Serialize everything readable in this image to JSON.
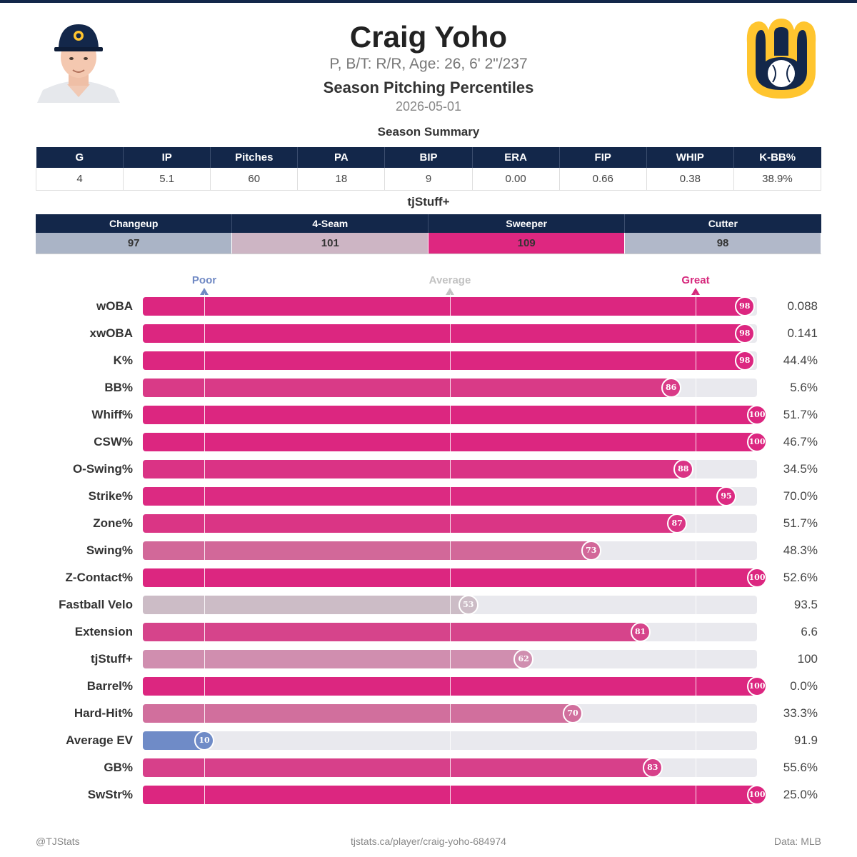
{
  "header": {
    "name": "Craig Yoho",
    "bio": "P, B/T: R/R, Age: 26, 6' 2\"/237",
    "title": "Season Pitching Percentiles",
    "date": "2026-05-01",
    "team_logo_icon": "brewers-ball-in-glove-logo",
    "headshot_icon": "player-headshot"
  },
  "summary": {
    "label": "Season Summary",
    "columns": [
      "G",
      "IP",
      "Pitches",
      "PA",
      "BIP",
      "ERA",
      "FIP",
      "WHIP",
      "K-BB%"
    ],
    "values": [
      "4",
      "5.1",
      "60",
      "18",
      "9",
      "0.00",
      "0.66",
      "0.38",
      "38.9%"
    ]
  },
  "stuff": {
    "label": "tjStuff+",
    "pitches": [
      {
        "name": "Changeup",
        "value": "97",
        "color": "#aab4c6"
      },
      {
        "name": "4-Seam",
        "value": "101",
        "color": "#cdb5c4"
      },
      {
        "name": "Sweeper",
        "value": "109",
        "color": "#de2780"
      },
      {
        "name": "Cutter",
        "value": "98",
        "color": "#b1b8c9"
      }
    ]
  },
  "chart_data": {
    "type": "bar",
    "orientation": "horizontal",
    "xlim": [
      0,
      100
    ],
    "scale_labels": [
      {
        "label": "Poor",
        "at": 10,
        "color": "#7089c4"
      },
      {
        "label": "Average",
        "at": 50,
        "color": "#c2c2c2"
      },
      {
        "label": "Great",
        "at": 90,
        "color": "#d6287c"
      }
    ],
    "categories": [
      "wOBA",
      "xwOBA",
      "K%",
      "BB%",
      "Whiff%",
      "CSW%",
      "O-Swing%",
      "Strike%",
      "Zone%",
      "Swing%",
      "Z-Contact%",
      "Fastball Velo",
      "Extension",
      "tjStuff+",
      "Barrel%",
      "Hard-Hit%",
      "Average EV",
      "GB%",
      "SwStr%"
    ],
    "percentiles": [
      98,
      98,
      98,
      86,
      100,
      100,
      88,
      95,
      87,
      73,
      100,
      53,
      81,
      62,
      100,
      70,
      10,
      83,
      100
    ],
    "stat_values": [
      "0.088",
      "0.141",
      "44.4%",
      "5.6%",
      "51.7%",
      "46.7%",
      "34.5%",
      "70.0%",
      "51.7%",
      "48.3%",
      "52.6%",
      "93.5",
      "6.6",
      "100",
      "0.0%",
      "33.3%",
      "91.9",
      "55.6%",
      "25.0%"
    ],
    "colors": [
      "#dc2680",
      "#dc2680",
      "#dc2680",
      "#d93a87",
      "#dc2680",
      "#dc2680",
      "#da3385",
      "#dc2a82",
      "#da3585",
      "#d26899",
      "#dc2680",
      "#ccbcc6",
      "#d6448b",
      "#d08eaf",
      "#dc2680",
      "#d16f9d",
      "#6f8bc7",
      "#d7408a",
      "#dc2680"
    ]
  },
  "footer": {
    "left": "@TJStats",
    "center": "tjstats.ca/player/craig-yoho-684974",
    "right": "Data: MLB"
  }
}
